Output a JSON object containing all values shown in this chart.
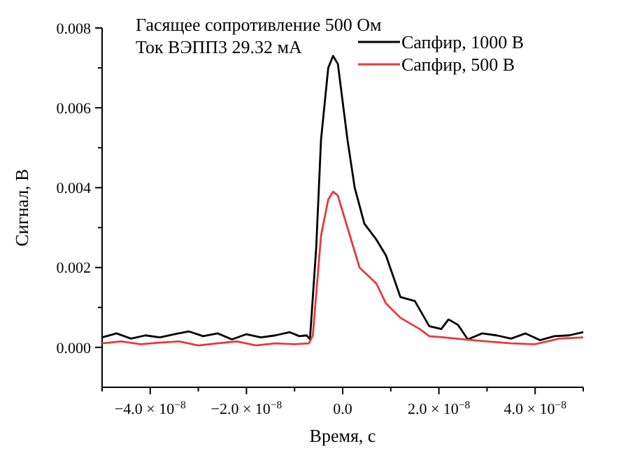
{
  "chart_data": {
    "type": "line",
    "xlabel": "Время, с",
    "ylabel": "Сигнал, В",
    "annotations": [
      "Гасящее сопротивление 500 Ом",
      "Ток ВЭПП3 29.32 мА"
    ],
    "xlim": [
      -5e-08,
      5e-08
    ],
    "ylim": [
      -0.001,
      0.008
    ],
    "xticks": [
      {
        "value": -5e-08,
        "label": null
      },
      {
        "value": -4e-08,
        "label": "−4.0 × 10$^{−8}$"
      },
      {
        "value": -3e-08,
        "label": null
      },
      {
        "value": -2e-08,
        "label": "−2.0 × 10$^{−8}$"
      },
      {
        "value": -1e-08,
        "label": null
      },
      {
        "value": 0,
        "label": "0.0"
      },
      {
        "value": 1e-08,
        "label": null
      },
      {
        "value": 2e-08,
        "label": "2.0 × 10$^{−8}$"
      },
      {
        "value": 3e-08,
        "label": null
      },
      {
        "value": 4e-08,
        "label": "4.0 × 10$^{−8}$"
      },
      {
        "value": 5e-08,
        "label": null
      }
    ],
    "yticks": [
      {
        "value": 0,
        "label": "0.000"
      },
      {
        "value": 0.001,
        "label": null
      },
      {
        "value": 0.002,
        "label": "0.002"
      },
      {
        "value": 0.003,
        "label": null
      },
      {
        "value": 0.004,
        "label": "0.004"
      },
      {
        "value": 0.005,
        "label": null
      },
      {
        "value": 0.006,
        "label": "0.006"
      },
      {
        "value": 0.007,
        "label": null
      },
      {
        "value": 0.008,
        "label": "0.008"
      }
    ],
    "legend": "top right",
    "grid": false,
    "marker": "none",
    "line_style": "solid",
    "series": [
      {
        "name": "Сапфир, 1000 В",
        "color": "#000000",
        "x": [
          -5e-08,
          -4.7e-08,
          -4.4e-08,
          -4.1e-08,
          -3.8e-08,
          -3.5e-08,
          -3.2e-08,
          -2.9e-08,
          -2.6e-08,
          -2.3e-08,
          -2e-08,
          -1.7e-08,
          -1.4e-08,
          -1.1e-08,
          -9e-09,
          -7.5e-09,
          -6.8e-09,
          -5.5e-09,
          -4.5e-09,
          -3e-09,
          -2e-09,
          -1e-09,
          1e-09,
          2.5e-09,
          4.5e-09,
          7e-09,
          9e-09,
          1.2e-08,
          1.5e-08,
          1.8e-08,
          2.05e-08,
          2.2e-08,
          2.4e-08,
          2.6e-08,
          2.9e-08,
          3.2e-08,
          3.5e-08,
          3.8e-08,
          4.1e-08,
          4.4e-08,
          4.7e-08,
          5e-08
        ],
        "values": [
          0.00025,
          0.00035,
          0.00022,
          0.0003,
          0.00025,
          0.00033,
          0.0004,
          0.00028,
          0.00035,
          0.0002,
          0.00033,
          0.00025,
          0.0003,
          0.00038,
          0.00028,
          0.0003,
          0.0002,
          0.0025,
          0.0052,
          0.007,
          0.0073,
          0.0071,
          0.0052,
          0.004,
          0.0031,
          0.0027,
          0.0023,
          0.00126,
          0.00116,
          0.00053,
          0.00046,
          0.0007,
          0.00056,
          0.0002,
          0.00035,
          0.0003,
          0.00022,
          0.00035,
          0.00018,
          0.00028,
          0.0003,
          0.00038
        ]
      },
      {
        "name": "Сапфир, 500 В",
        "color": "#e8383d",
        "x": [
          -5e-08,
          -4.6e-08,
          -4.2e-08,
          -3.8e-08,
          -3.4e-08,
          -3e-08,
          -2.6e-08,
          -2.2e-08,
          -1.8e-08,
          -1.4e-08,
          -1e-08,
          -7e-09,
          -6.2e-09,
          -4.5e-09,
          -3e-09,
          -2e-09,
          -1e-09,
          1.5e-09,
          3.5e-09,
          7e-09,
          9e-09,
          1.2e-08,
          1.6e-08,
          1.8e-08,
          2.1e-08,
          2.5e-08,
          3e-08,
          3.5e-08,
          4e-08,
          4.5e-08,
          5e-08
        ],
        "values": [
          0.0001,
          0.00015,
          8e-05,
          0.00012,
          0.00015,
          5e-05,
          0.0001,
          0.00015,
          5e-05,
          0.0001,
          8e-05,
          0.0001,
          0.0003,
          0.0028,
          0.0037,
          0.0039,
          0.0038,
          0.0028,
          0.002,
          0.0016,
          0.0011,
          0.00074,
          0.00046,
          0.00028,
          0.00025,
          0.0002,
          0.00015,
          0.0001,
          8e-05,
          0.00022,
          0.00025
        ]
      }
    ]
  }
}
